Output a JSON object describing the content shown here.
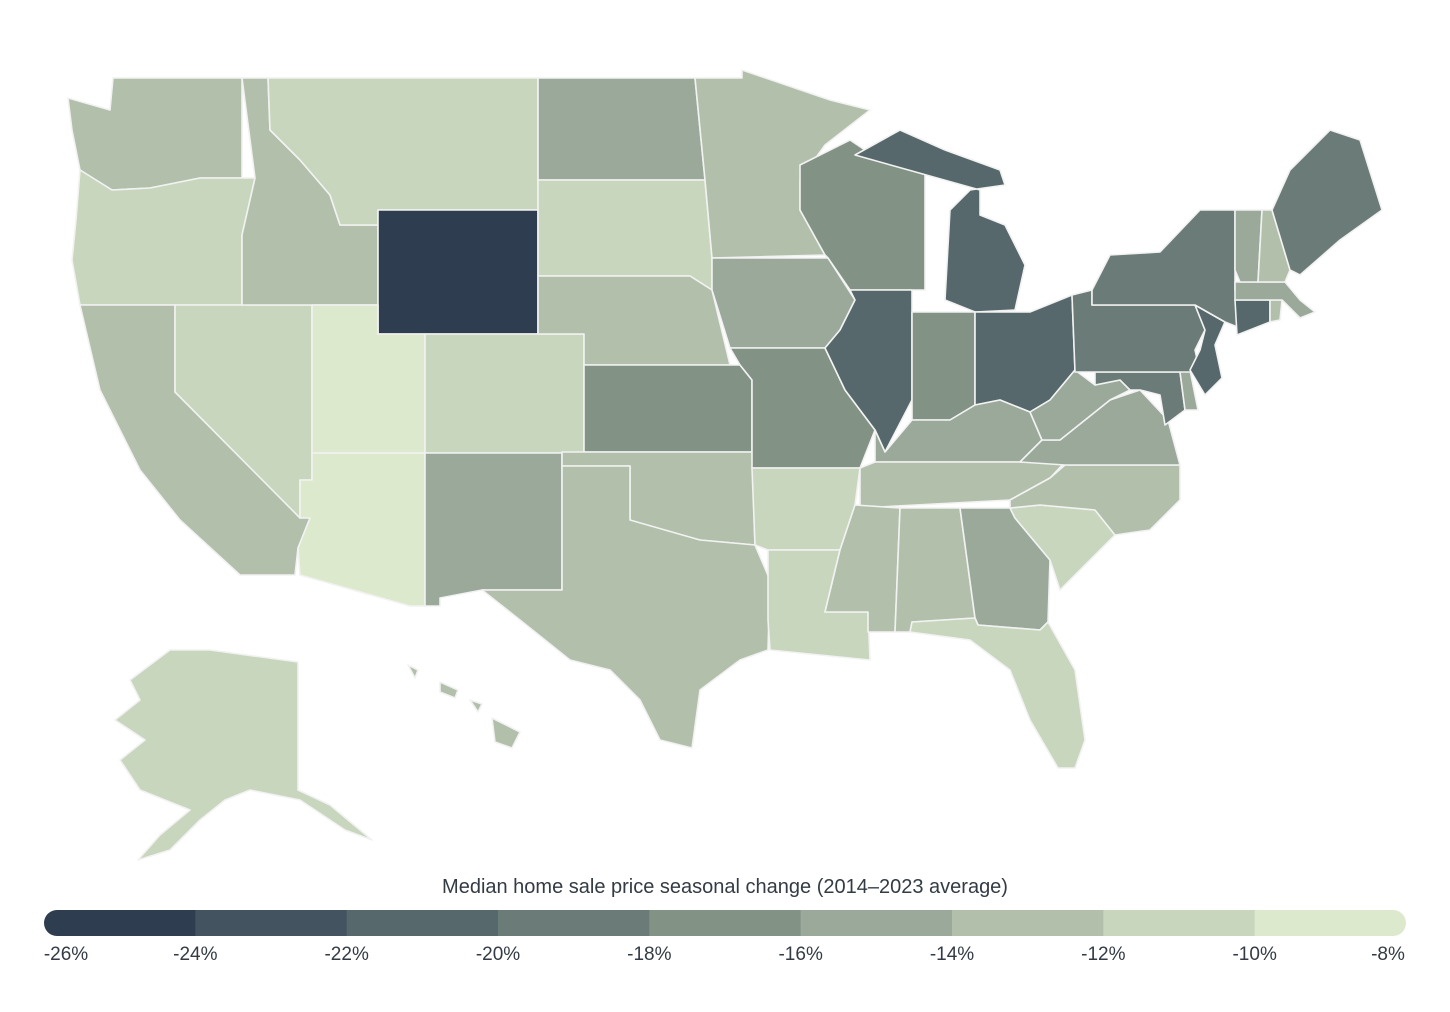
{
  "legend": {
    "title": "Median home sale price seasonal change (2014–2023 average)",
    "bins": [
      {
        "range": [
          -26,
          -24
        ],
        "color": "#2e3d4f"
      },
      {
        "range": [
          -24,
          -22
        ],
        "color": "#435460"
      },
      {
        "range": [
          -22,
          -20
        ],
        "color": "#56686b"
      },
      {
        "range": [
          -20,
          -18
        ],
        "color": "#6b7b77"
      },
      {
        "range": [
          -18,
          -16
        ],
        "color": "#829285"
      },
      {
        "range": [
          -16,
          -14
        ],
        "color": "#9aa99a"
      },
      {
        "range": [
          -14,
          -12
        ],
        "color": "#b2bfab"
      },
      {
        "range": [
          -12,
          -10
        ],
        "color": "#c8d6bd"
      },
      {
        "range": [
          -10,
          -8
        ],
        "color": "#dde9cc"
      }
    ],
    "ticks": [
      "-26%",
      "-24%",
      "-22%",
      "-20%",
      "-18%",
      "-16%",
      "-14%",
      "-12%",
      "-10%",
      "-8%"
    ]
  },
  "states": {
    "WA": -14,
    "OR": -11,
    "CA": -13,
    "NV": -11,
    "ID": -13,
    "MT": -11,
    "WY": -25,
    "UT": -9,
    "AZ": -9,
    "CO": -11,
    "NM": -15,
    "ND": -15,
    "SD": -11,
    "NE": -13,
    "KS": -17,
    "OK": -13,
    "TX": -13,
    "MN": -13,
    "IA": -15,
    "MO": -17,
    "AR": -11,
    "LA": -11,
    "WI": -17,
    "IL": -21,
    "MI": -21,
    "IN": -17,
    "OH": -21,
    "KY": -15,
    "TN": -13,
    "MS": -13,
    "AL": -13,
    "GA": -15,
    "FL": -11,
    "SC": -11,
    "NC": -13,
    "VA": -15,
    "WV": -15,
    "PA": -19,
    "NY": -19,
    "NJ": -21,
    "DE": -15,
    "MD": -19,
    "CT": -21,
    "RI": -13,
    "MA": -15,
    "VT": -15,
    "NH": -13,
    "ME": -19,
    "AK": -11,
    "HI": -13
  }
}
